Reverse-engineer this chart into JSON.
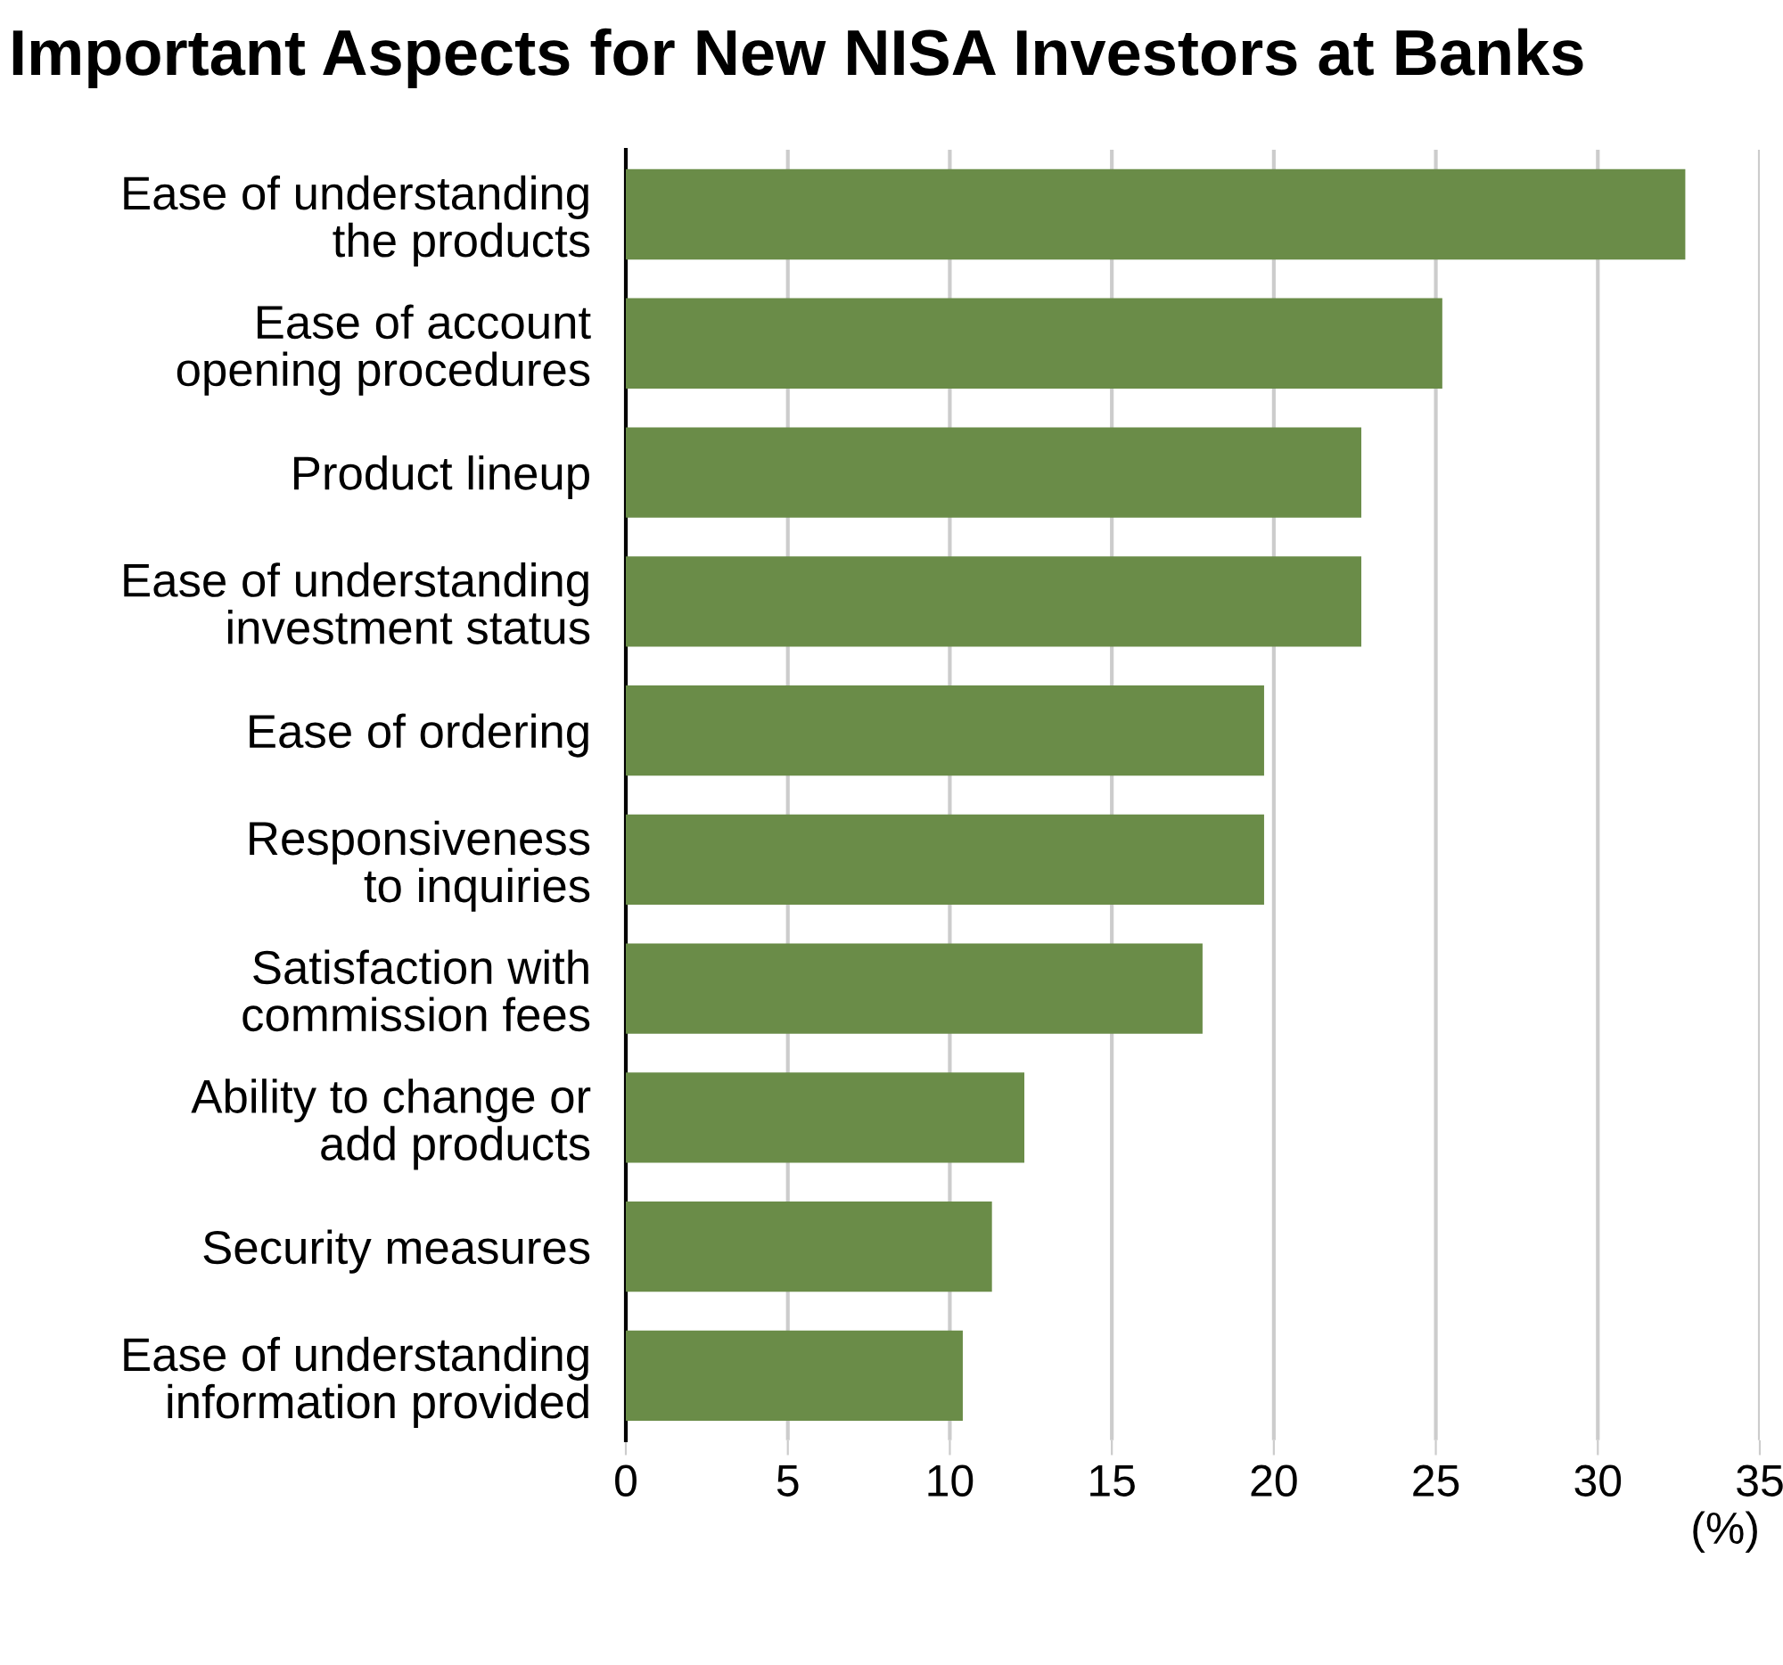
{
  "chart_data": {
    "type": "bar",
    "orientation": "horizontal",
    "title": "Important Aspects for New NISA Investors at Banks",
    "xlabel": "(%)",
    "categories": [
      "Ease of understanding\nthe products",
      "Ease of account\nopening procedures",
      "Product lineup",
      "Ease of understanding\ninvestment status",
      "Ease of ordering",
      "Responsiveness\nto inquiries",
      "Satisfaction with\ncommission fees",
      "Ability to change or\nadd products",
      "Security measures",
      "Ease of understanding\ninformation provided"
    ],
    "values": [
      32.7,
      25.2,
      22.7,
      22.7,
      19.7,
      19.7,
      17.8,
      12.3,
      11.3,
      10.4
    ],
    "color": "#6a8c48",
    "xlim": [
      0,
      35
    ],
    "xticks": [
      0,
      5,
      10,
      15,
      20,
      25,
      30,
      35
    ],
    "grid": "x"
  }
}
